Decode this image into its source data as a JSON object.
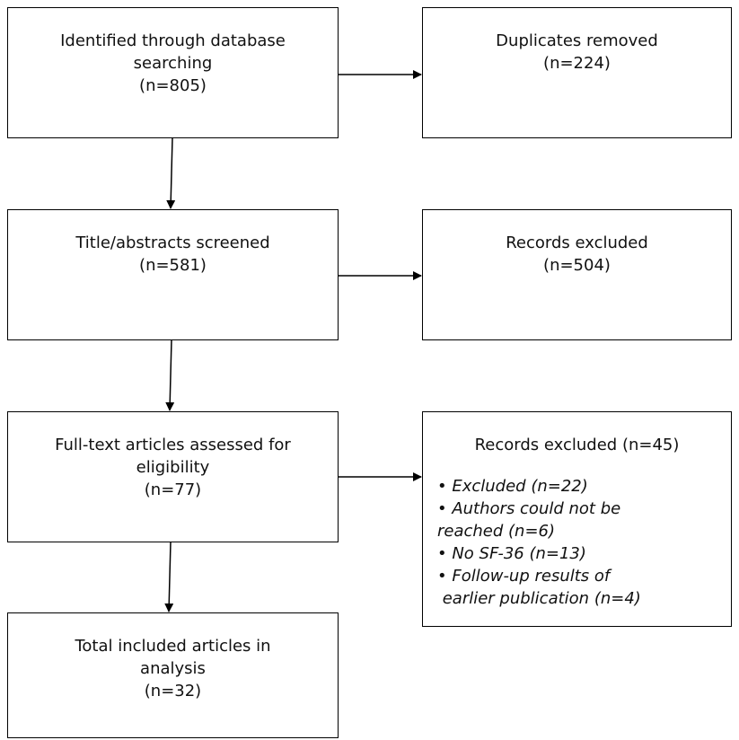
{
  "boxes": {
    "identified": {
      "lines": [
        "Identified through database",
        "searching",
        "(n=805)"
      ]
    },
    "duplicates": {
      "lines": [
        "Duplicates removed",
        "(n=224)"
      ]
    },
    "screened": {
      "lines": [
        "Title/abstracts screened",
        "(n=581)"
      ]
    },
    "excluded1": {
      "lines": [
        "Records excluded",
        "(n=504)"
      ]
    },
    "fulltext": {
      "lines": [
        "Full-text articles assessed for",
        "eligibility",
        "(n=77)"
      ]
    },
    "excluded2": {
      "title": "Records excluded (n=45)",
      "items": [
        "• Excluded (n=22)",
        "• Authors could not be",
        "reached (n=6)",
        "• No SF-36 (n=13)",
        "• Follow-up results of",
        " earlier publication (n=4)"
      ]
    },
    "included": {
      "lines": [
        "Total included articles in",
        "analysis",
        "(n=32)"
      ]
    }
  }
}
